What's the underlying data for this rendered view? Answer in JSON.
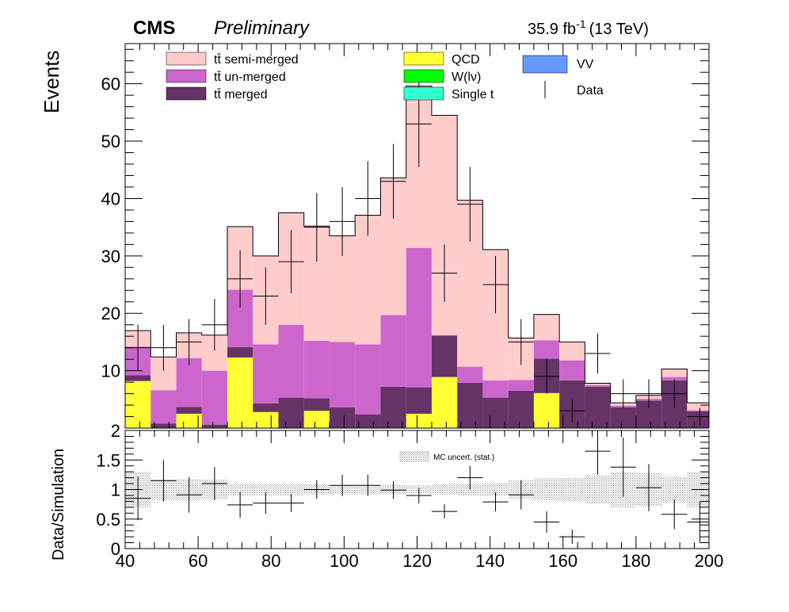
{
  "header": {
    "experiment": "CMS",
    "status": "Preliminary",
    "lumi_value": "35.9 fb",
    "lumi_exp": "-1",
    "energy": "(13 TeV)"
  },
  "chart_data": [
    {
      "type": "bar",
      "subtype": "stacked-histogram",
      "ylabel": "Events",
      "xlim": [
        40,
        200
      ],
      "ylim": [
        0,
        67
      ],
      "yticks": [
        10,
        20,
        30,
        40,
        50,
        60
      ],
      "bin_edges": [
        40,
        47,
        54,
        61,
        68,
        75,
        82,
        89,
        96,
        103,
        110,
        117,
        124,
        131,
        138,
        145,
        152,
        159,
        166,
        173,
        180,
        187,
        194,
        201
      ],
      "legend": [
        {
          "label": "tt̄ semi-merged",
          "color": "#ffcccc",
          "kind": "fill"
        },
        {
          "label": "tt̄ un-merged",
          "color": "#cc66cc",
          "kind": "fill"
        },
        {
          "label": "tt̄ merged",
          "color": "#663366",
          "kind": "fill"
        },
        {
          "label": "QCD",
          "color": "#ffff33",
          "kind": "fill"
        },
        {
          "label": "W(lν)",
          "color": "#00ff00",
          "kind": "fill"
        },
        {
          "label": "Single t",
          "color": "#33ffcc",
          "kind": "fill"
        },
        {
          "label": "VV",
          "color": "#6699ff",
          "kind": "fill"
        },
        {
          "label": "Data",
          "color": "#000000",
          "kind": "marker"
        }
      ],
      "series": [
        {
          "name": "QCD",
          "color": "#ffff33",
          "values": [
            8.2,
            0,
            2.5,
            0,
            12.3,
            2.8,
            0,
            3.0,
            0,
            0,
            0,
            2.5,
            8.9,
            0,
            0,
            0,
            6.1,
            0,
            0,
            0,
            0,
            0,
            0
          ]
        },
        {
          "name": "tt̄ merged",
          "color": "#663366",
          "values": [
            1.0,
            0.8,
            1.2,
            0.6,
            1.8,
            1.5,
            5.3,
            2.2,
            3.6,
            2.4,
            7.2,
            4.6,
            7.2,
            7.9,
            5.3,
            6.5,
            6.0,
            8.3,
            7.2,
            3.6,
            4.8,
            8.3,
            2.9
          ]
        },
        {
          "name": "tt̄ un-merged",
          "color": "#cc66cc",
          "values": [
            5.0,
            5.8,
            8.5,
            9.4,
            10.0,
            10.3,
            12.7,
            10.0,
            11.4,
            12.2,
            12.5,
            24.3,
            0.1,
            2.8,
            3.0,
            1.9,
            3.2,
            3.5,
            0.3,
            0.3,
            0.3,
            0.6,
            0.2
          ]
        },
        {
          "name": "tt̄ semi-merged",
          "color": "#ffcccc",
          "values": [
            2.8,
            5.8,
            4.4,
            6.2,
            11.0,
            15.4,
            19.5,
            20.0,
            18.5,
            22.5,
            23.9,
            28.2,
            38.3,
            29.0,
            22.8,
            7.3,
            4.5,
            3.2,
            0.3,
            0.5,
            0.6,
            1.4,
            1.3
          ]
        }
      ],
      "data_points": [
        {
          "x": 43.5,
          "y": 14.0,
          "err": 4.0
        },
        {
          "x": 50.5,
          "y": 14.0,
          "err": 4.0
        },
        {
          "x": 57.5,
          "y": 15.0,
          "err": 4.0
        },
        {
          "x": 64.5,
          "y": 18.0,
          "err": 4.5
        },
        {
          "x": 71.5,
          "y": 26.0,
          "err": 5.0
        },
        {
          "x": 78.5,
          "y": 23.0,
          "err": 5.0
        },
        {
          "x": 85.5,
          "y": 29.0,
          "err": 5.5
        },
        {
          "x": 92.5,
          "y": 35.0,
          "err": 6.0
        },
        {
          "x": 99.5,
          "y": 36.0,
          "err": 6.0
        },
        {
          "x": 106.5,
          "y": 40.0,
          "err": 6.5
        },
        {
          "x": 113.5,
          "y": 43.0,
          "err": 6.5
        },
        {
          "x": 120.5,
          "y": 53.0,
          "err": 7.5
        },
        {
          "x": 127.5,
          "y": 27.0,
          "err": 5.0
        },
        {
          "x": 134.5,
          "y": 39.0,
          "err": 6.5
        },
        {
          "x": 141.5,
          "y": 25.0,
          "err": 5.0
        },
        {
          "x": 148.5,
          "y": 15.0,
          "err": 4.0
        },
        {
          "x": 155.5,
          "y": 9.0,
          "err": 3.0
        },
        {
          "x": 162.5,
          "y": 3.0,
          "err": 2.0
        },
        {
          "x": 169.5,
          "y": 13.0,
          "err": 3.5
        },
        {
          "x": 176.5,
          "y": 6.0,
          "err": 2.5
        },
        {
          "x": 183.5,
          "y": 6.0,
          "err": 2.5
        },
        {
          "x": 190.5,
          "y": 6.0,
          "err": 2.5
        },
        {
          "x": 197.5,
          "y": 2.0,
          "err": 1.5
        }
      ]
    },
    {
      "type": "scatter",
      "subtype": "ratio",
      "ylabel": "Data/Simulation",
      "xlim": [
        40,
        200
      ],
      "ylim": [
        0,
        2
      ],
      "yticks": [
        "0",
        "0.5",
        "1",
        "1.5",
        "2"
      ],
      "xticks": [
        "40",
        "60",
        "80",
        "100",
        "120",
        "140",
        "160",
        "180",
        "200"
      ],
      "band_label": "MC uncert. (stat.)",
      "band_halfwidth": [
        0.3,
        0.18,
        0.18,
        0.17,
        0.1,
        0.1,
        0.1,
        0.09,
        0.08,
        0.08,
        0.08,
        0.07,
        0.09,
        0.1,
        0.11,
        0.16,
        0.19,
        0.2,
        0.24,
        0.3,
        0.28,
        0.22,
        0.3
      ],
      "points": [
        {
          "x": 43.5,
          "y": 0.85,
          "err": 0.37
        },
        {
          "x": 50.5,
          "y": 1.15,
          "err": 0.35
        },
        {
          "x": 57.5,
          "y": 0.91,
          "err": 0.3
        },
        {
          "x": 64.5,
          "y": 1.1,
          "err": 0.28
        },
        {
          "x": 71.5,
          "y": 0.74,
          "err": 0.22
        },
        {
          "x": 78.5,
          "y": 0.77,
          "err": 0.18
        },
        {
          "x": 85.5,
          "y": 0.77,
          "err": 0.15
        },
        {
          "x": 92.5,
          "y": 1.0,
          "err": 0.16
        },
        {
          "x": 99.5,
          "y": 1.07,
          "err": 0.18
        },
        {
          "x": 106.5,
          "y": 1.07,
          "err": 0.18
        },
        {
          "x": 113.5,
          "y": 0.99,
          "err": 0.15
        },
        {
          "x": 120.5,
          "y": 0.9,
          "err": 0.13
        },
        {
          "x": 127.5,
          "y": 0.63,
          "err": 0.12
        },
        {
          "x": 134.5,
          "y": 1.2,
          "err": 0.2
        },
        {
          "x": 141.5,
          "y": 0.79,
          "err": 0.16
        },
        {
          "x": 148.5,
          "y": 0.91,
          "err": 0.25
        },
        {
          "x": 155.5,
          "y": 0.45,
          "err": 0.18
        },
        {
          "x": 162.5,
          "y": 0.2,
          "err": 0.12
        },
        {
          "x": 169.5,
          "y": 1.65,
          "err": 0.4
        },
        {
          "x": 176.5,
          "y": 1.38,
          "err": 0.5
        },
        {
          "x": 183.5,
          "y": 1.03,
          "err": 0.4
        },
        {
          "x": 190.5,
          "y": 0.58,
          "err": 0.25
        },
        {
          "x": 197.5,
          "y": 0.45,
          "err": 0.35
        }
      ]
    }
  ]
}
